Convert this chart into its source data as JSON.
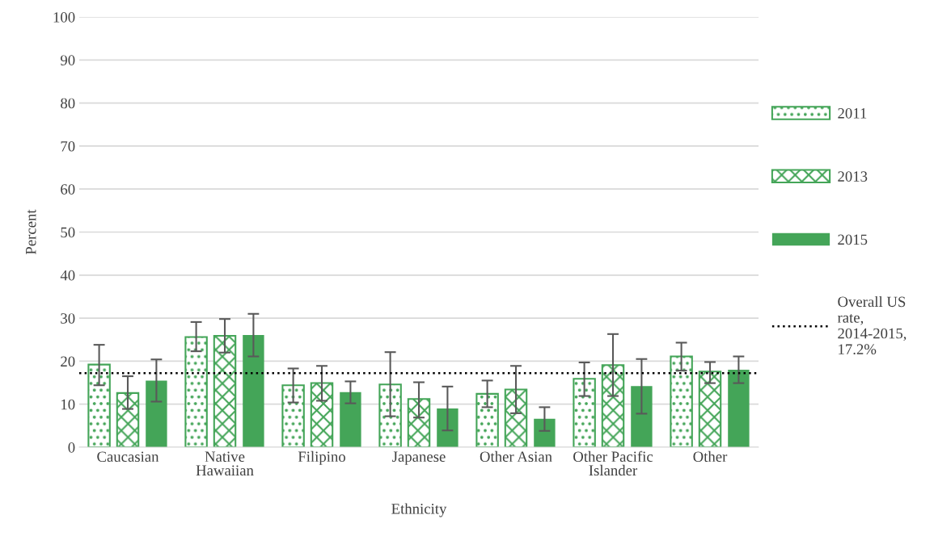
{
  "chart_data": {
    "type": "bar",
    "xlabel": "Ethnicity",
    "ylabel": "Percent",
    "categories": [
      "Caucasian",
      "Native Hawaiian",
      "Filipino",
      "Japanese",
      "Other Asian",
      "Other Pacific Islander",
      "Other"
    ],
    "series": [
      {
        "name": "2011",
        "color": "#44a558",
        "values": [
          19.2,
          25.6,
          14.4,
          14.6,
          12.4,
          15.9,
          21.1
        ],
        "errors": [
          [
            14.4,
            23.8
          ],
          [
            22.3,
            29.1
          ],
          [
            10.4,
            18.3
          ],
          [
            7.2,
            22.1
          ],
          [
            9.3,
            15.5
          ],
          [
            11.9,
            19.7
          ],
          [
            17.8,
            24.3
          ]
        ]
      },
      {
        "name": "2013",
        "color": "#44a558",
        "values": [
          12.6,
          25.9,
          14.9,
          11.2,
          13.4,
          19.1,
          17.6
        ],
        "errors": [
          [
            8.9,
            16.5
          ],
          [
            22.0,
            29.8
          ],
          [
            10.8,
            18.9
          ],
          [
            6.9,
            15.1
          ],
          [
            7.9,
            18.9
          ],
          [
            11.9,
            26.3
          ],
          [
            14.9,
            19.8
          ]
        ]
      },
      {
        "name": "2015",
        "color": "#44a558",
        "values": [
          15.5,
          26.1,
          12.8,
          9.0,
          6.6,
          14.2,
          18.0
        ],
        "errors": [
          [
            10.6,
            20.4
          ],
          [
            21.1,
            31.0
          ],
          [
            10.2,
            15.3
          ],
          [
            3.9,
            14.1
          ],
          [
            3.8,
            9.3
          ],
          [
            7.8,
            20.5
          ],
          [
            14.9,
            21.1
          ]
        ]
      }
    ],
    "ylim": [
      0,
      100
    ],
    "yticks": [
      0,
      10,
      20,
      30,
      40,
      50,
      60,
      70,
      80,
      90,
      100
    ],
    "ref_lines": [
      {
        "axis": "y",
        "value": 17.2,
        "label": "Overall US rate, 2014-2015, 17.2%",
        "color": "#000000",
        "line_style": "dotted"
      }
    ],
    "grid": "y",
    "legend": "right"
  }
}
